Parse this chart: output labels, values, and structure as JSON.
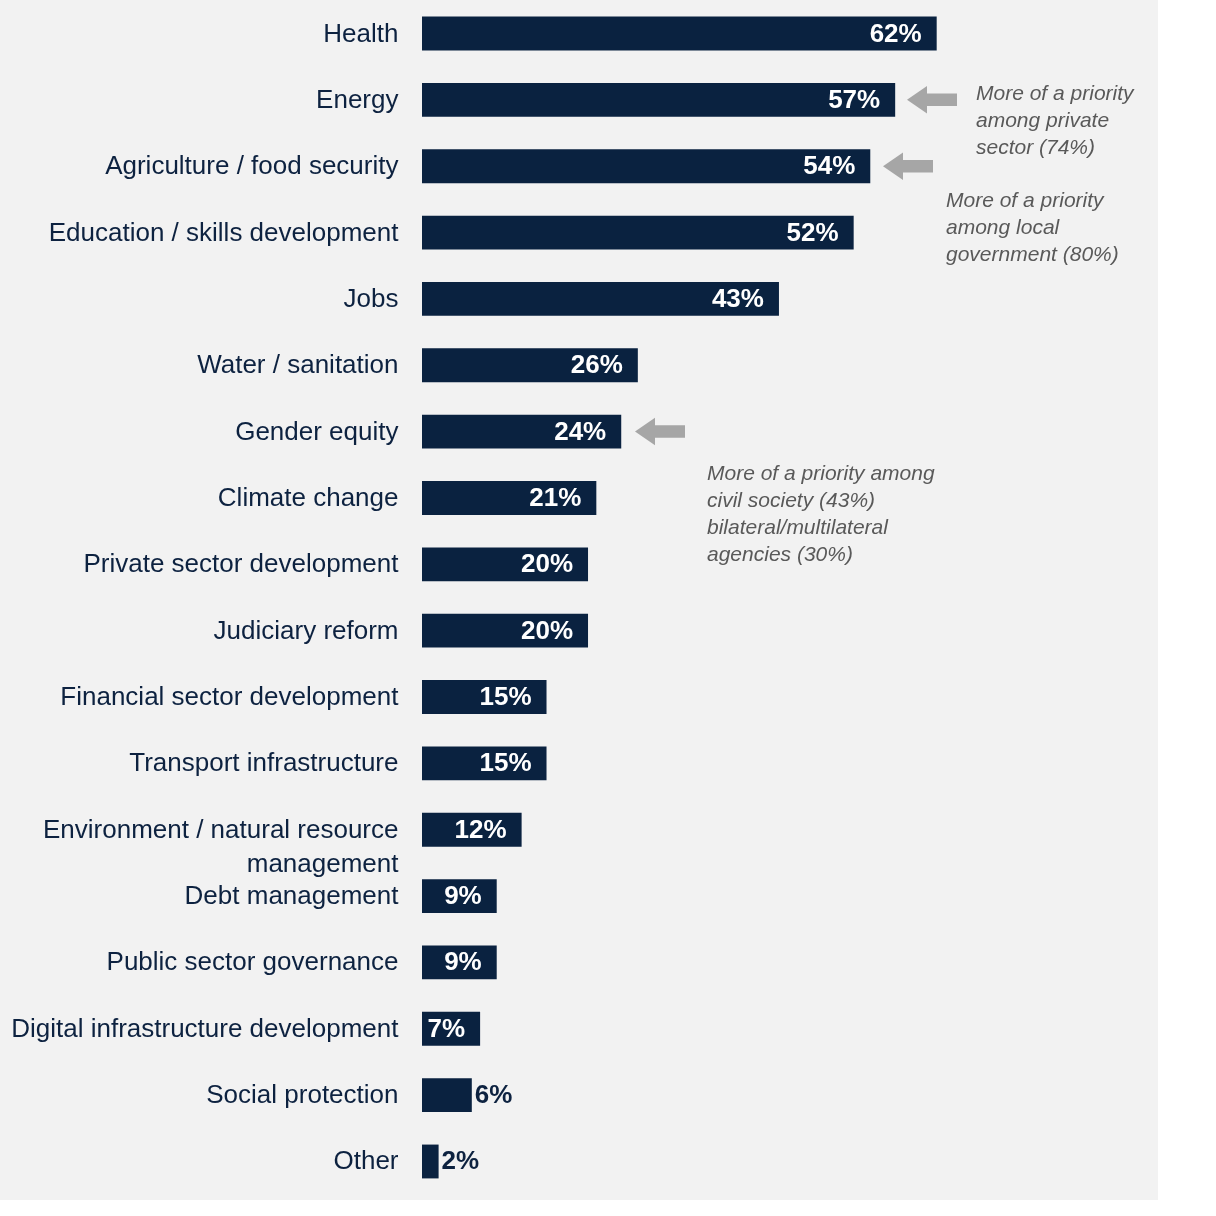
{
  "chart_data": {
    "type": "bar",
    "orientation": "horizontal",
    "categories": [
      "Health",
      "Energy",
      "Agriculture / food security",
      "Education / skills development",
      "Jobs",
      "Water / sanitation",
      "Gender equity",
      "Climate change",
      "Private sector development",
      "Judiciary reform",
      "Financial sector development",
      "Transport infrastructure",
      "Environment / natural resource management",
      "Debt management",
      "Public sector governance",
      "Digital infrastructure development",
      "Social protection",
      "Other"
    ],
    "values": [
      62,
      57,
      54,
      52,
      43,
      26,
      24,
      21,
      20,
      20,
      15,
      15,
      12,
      9,
      9,
      7,
      6,
      2
    ],
    "value_labels": [
      "62%",
      "57%",
      "54%",
      "52%",
      "43%",
      "26%",
      "24%",
      "21%",
      "20%",
      "20%",
      "15%",
      "15%",
      "12%",
      "9%",
      "9%",
      "7%",
      "6%",
      "2%"
    ],
    "color": "#0a2240",
    "annotations": [
      "More of a priority\namong private\nsector (74%)",
      "More of a priority\namong local\ngovernment (80%)",
      "More of a priority among\ncivil society (43%)\nbilateral/multilateral\nagencies (30%)"
    ]
  }
}
